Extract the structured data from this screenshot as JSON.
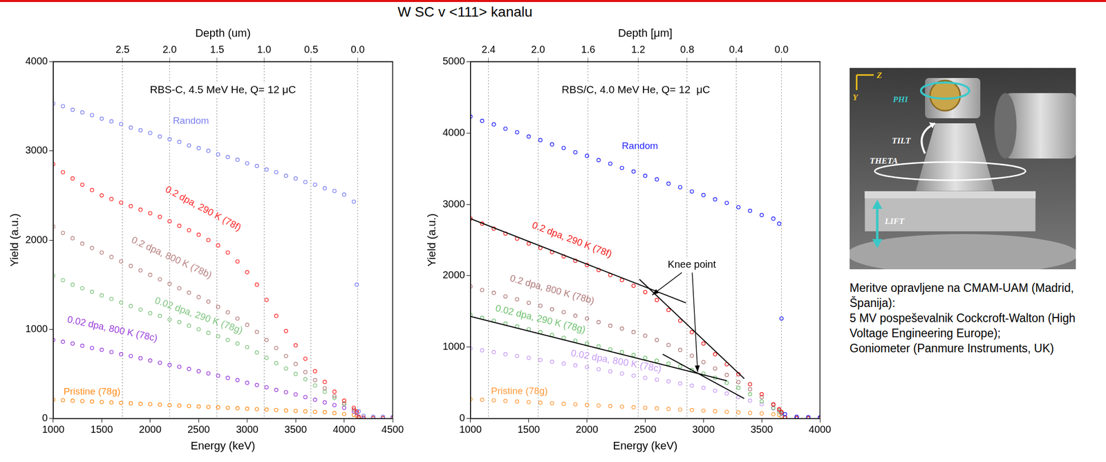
{
  "title": "W SC v <111> kanalu",
  "chart_data": [
    {
      "type": "scatter",
      "note": "RBS-C, 4.5 MeV He, Q= 12 μC",
      "xlabel": "Energy (keV)",
      "ylabel": "Yield (a.u.)",
      "x2label": "Depth (um)",
      "xlim": [
        1000,
        4500
      ],
      "xticks": [
        1000,
        1500,
        2000,
        2500,
        3000,
        3500,
        4000,
        4500
      ],
      "ylim": [
        0,
        4000
      ],
      "yticks": [
        0,
        1000,
        2000,
        3000,
        4000
      ],
      "x2lim": [
        1000,
        4500
      ],
      "x2ticks": [
        {
          "value": 1715,
          "label": "2.5"
        },
        {
          "value": 2200,
          "label": "2.0"
        },
        {
          "value": 2690,
          "label": "1.5"
        },
        {
          "value": 3175,
          "label": "1.0"
        },
        {
          "value": 3660,
          "label": "0.5"
        },
        {
          "value": 4140,
          "label": "0.0"
        }
      ],
      "grid": true,
      "x": [
        1000,
        1100,
        1200,
        1300,
        1400,
        1500,
        1600,
        1700,
        1800,
        1900,
        2000,
        2100,
        2200,
        2300,
        2400,
        2500,
        2600,
        2700,
        2800,
        2900,
        3000,
        3100,
        3200,
        3300,
        3400,
        3500,
        3600,
        3700,
        3800,
        3900,
        4000,
        4100,
        4130,
        4150,
        4200,
        4300,
        4400,
        4500
      ],
      "series": [
        {
          "name": "Random",
          "color": "#7b7ff0",
          "marker": "circle",
          "values": [
            3530,
            3500,
            3460,
            3430,
            3400,
            3360,
            3330,
            3300,
            3260,
            3230,
            3200,
            3160,
            3130,
            3100,
            3060,
            3030,
            3000,
            2960,
            2930,
            2900,
            2860,
            2830,
            2790,
            2760,
            2720,
            2690,
            2650,
            2620,
            2580,
            2550,
            2510,
            2430,
            1500,
            80,
            30,
            20,
            20,
            15
          ]
        },
        {
          "name": "0.2 dpa, 290 K (78f)",
          "color": "#ff2a2a",
          "marker": "circle",
          "values": [
            2850,
            2760,
            2690,
            2620,
            2560,
            2500,
            2460,
            2420,
            2380,
            2340,
            2300,
            2260,
            2210,
            2160,
            2110,
            2060,
            2000,
            1940,
            1860,
            1760,
            1640,
            1500,
            1330,
            1150,
            980,
            820,
            670,
            530,
            410,
            300,
            200,
            120,
            80,
            20,
            10,
            5,
            5,
            5
          ]
        },
        {
          "name": "0.2 dpa, 800 K (78b)",
          "color": "#b88080",
          "marker": "circle",
          "values": [
            2150,
            2080,
            2020,
            1960,
            1910,
            1860,
            1810,
            1760,
            1710,
            1660,
            1610,
            1560,
            1510,
            1460,
            1410,
            1360,
            1310,
            1250,
            1190,
            1120,
            1050,
            970,
            880,
            790,
            700,
            610,
            520,
            430,
            340,
            250,
            170,
            100,
            70,
            15,
            8,
            5,
            5,
            5
          ]
        },
        {
          "name": "0.02 dpa, 290 K (78g)",
          "color": "#7fc47f",
          "marker": "circle",
          "values": [
            1600,
            1550,
            1500,
            1460,
            1420,
            1380,
            1340,
            1300,
            1260,
            1220,
            1180,
            1150,
            1110,
            1080,
            1040,
            1000,
            960,
            920,
            880,
            840,
            800,
            740,
            680,
            620,
            560,
            500,
            440,
            370,
            300,
            230,
            160,
            100,
            70,
            15,
            8,
            5,
            5,
            5
          ]
        },
        {
          "name": "0.02 dpa, 800 K (78c)",
          "color": "#9a3ddb",
          "marker": "circle",
          "values": [
            880,
            860,
            840,
            815,
            790,
            770,
            745,
            720,
            700,
            675,
            650,
            625,
            600,
            580,
            555,
            530,
            505,
            480,
            455,
            430,
            400,
            375,
            350,
            320,
            295,
            270,
            240,
            210,
            180,
            150,
            120,
            80,
            60,
            10,
            5,
            5,
            5,
            5
          ]
        },
        {
          "name": "Pristine (78g)",
          "color": "#ff8c1a",
          "marker": "circle",
          "values": [
            210,
            205,
            200,
            195,
            190,
            185,
            180,
            175,
            170,
            165,
            160,
            155,
            150,
            145,
            140,
            135,
            130,
            125,
            120,
            115,
            110,
            105,
            100,
            95,
            90,
            85,
            80,
            75,
            70,
            60,
            50,
            40,
            30,
            10,
            5,
            5,
            5,
            5
          ]
        }
      ]
    },
    {
      "type": "scatter",
      "note": "RBS/C, 4.0 MeV He, Q= 12  μC",
      "xlabel": "Energy (keV)",
      "ylabel": "Yield (a.u.)",
      "x2label": "Depth [μm]",
      "xlim": [
        1000,
        4000
      ],
      "xticks": [
        1000,
        1500,
        2000,
        2500,
        3000,
        3500,
        4000
      ],
      "ylim": [
        0,
        5000
      ],
      "yticks": [
        0,
        1000,
        2000,
        3000,
        4000,
        5000
      ],
      "x2lim": [
        1000,
        4000
      ],
      "x2ticks": [
        {
          "value": 1155,
          "label": "2.4"
        },
        {
          "value": 1580,
          "label": "2.0"
        },
        {
          "value": 2010,
          "label": "1.6"
        },
        {
          "value": 2440,
          "label": "1.2"
        },
        {
          "value": 2860,
          "label": "0.8"
        },
        {
          "value": 3280,
          "label": "0.4"
        },
        {
          "value": 3670,
          "label": "0.0"
        }
      ],
      "grid": true,
      "x": [
        1000,
        1100,
        1200,
        1300,
        1400,
        1500,
        1600,
        1700,
        1800,
        1900,
        2000,
        2100,
        2200,
        2300,
        2400,
        2500,
        2600,
        2700,
        2800,
        2900,
        3000,
        3100,
        3200,
        3300,
        3400,
        3500,
        3600,
        3650,
        3670,
        3700,
        3800,
        3900,
        4000
      ],
      "series": [
        {
          "name": "Random",
          "color": "#1f1fff",
          "marker": "circle",
          "values": [
            4230,
            4170,
            4120,
            4060,
            4010,
            3950,
            3900,
            3840,
            3790,
            3730,
            3680,
            3620,
            3570,
            3510,
            3460,
            3400,
            3350,
            3290,
            3240,
            3180,
            3130,
            3070,
            3020,
            2960,
            2910,
            2850,
            2800,
            2730,
            1400,
            60,
            25,
            20,
            15
          ]
        },
        {
          "name": "0.2 dpa, 290 K (78f)",
          "color": "#f01818",
          "marker": "circle",
          "values": [
            2800,
            2730,
            2660,
            2590,
            2520,
            2450,
            2390,
            2330,
            2270,
            2210,
            2150,
            2080,
            2010,
            1940,
            1860,
            1770,
            1660,
            1520,
            1370,
            1210,
            1050,
            900,
            760,
            620,
            480,
            340,
            200,
            130,
            90,
            20,
            10,
            5,
            5
          ]
        },
        {
          "name": "0.2 dpa, 800 K (78b)",
          "color": "#b07878",
          "marker": "circle",
          "values": [
            1850,
            1800,
            1760,
            1710,
            1670,
            1620,
            1580,
            1530,
            1490,
            1440,
            1400,
            1350,
            1300,
            1260,
            1210,
            1160,
            1100,
            1030,
            960,
            880,
            790,
            700,
            610,
            510,
            410,
            300,
            190,
            120,
            80,
            20,
            10,
            5,
            5
          ]
        },
        {
          "name": "0.02 dpa, 290 K (78g)",
          "color": "#6fc06f",
          "marker": "circle",
          "values": [
            1450,
            1410,
            1370,
            1330,
            1290,
            1250,
            1210,
            1170,
            1130,
            1090,
            1050,
            1010,
            970,
            930,
            890,
            850,
            810,
            770,
            730,
            680,
            630,
            570,
            500,
            430,
            340,
            240,
            150,
            100,
            70,
            15,
            8,
            5,
            5
          ]
        },
        {
          "name": "0.02 dpa, 800 K (78c)",
          "color": "#c79cf5",
          "marker": "circle",
          "values": [
            980,
            955,
            930,
            900,
            875,
            850,
            820,
            795,
            770,
            745,
            720,
            690,
            660,
            630,
            600,
            570,
            545,
            520,
            490,
            460,
            430,
            390,
            350,
            300,
            250,
            200,
            140,
            100,
            60,
            10,
            5,
            5,
            5
          ]
        },
        {
          "name": "Pristine (78g)",
          "color": "#ff9a3c",
          "marker": "circle",
          "values": [
            270,
            262,
            254,
            246,
            238,
            230,
            222,
            214,
            206,
            198,
            190,
            182,
            174,
            166,
            158,
            150,
            142,
            134,
            126,
            118,
            110,
            102,
            94,
            86,
            78,
            70,
            60,
            50,
            30,
            8,
            5,
            5,
            5
          ]
        }
      ],
      "fit_lines": [
        {
          "x": [
            1000,
            2850
          ],
          "y": [
            2800,
            1620
          ],
          "color": "#000000",
          "line_style": "solid"
        },
        {
          "x": [
            2450,
            3350
          ],
          "y": [
            1950,
            560
          ],
          "color": "#000000",
          "line_style": "solid"
        },
        {
          "x": [
            1000,
            3200
          ],
          "y": [
            1430,
            530
          ],
          "color": "#000000",
          "line_style": "solid"
        },
        {
          "x": [
            2650,
            3350
          ],
          "y": [
            900,
            280
          ],
          "color": "#000000",
          "line_style": "solid"
        }
      ],
      "annotations": [
        {
          "text": "Knee point",
          "points": [
            [
              2560,
              1730
            ],
            [
              2950,
              650
            ]
          ]
        }
      ]
    }
  ],
  "photo_labels": [
    "Y",
    "Z",
    "PHI",
    "TILT",
    "THETA",
    "LIFT"
  ],
  "caption": [
    "Meritve opravljene na CMAM-UAM (Madrid, Španija):",
    "5 MV pospeševalnik Cockcroft-Walton (High Voltage Engineering Europe);",
    " Goniometer (Panmure Instruments, UK)"
  ]
}
